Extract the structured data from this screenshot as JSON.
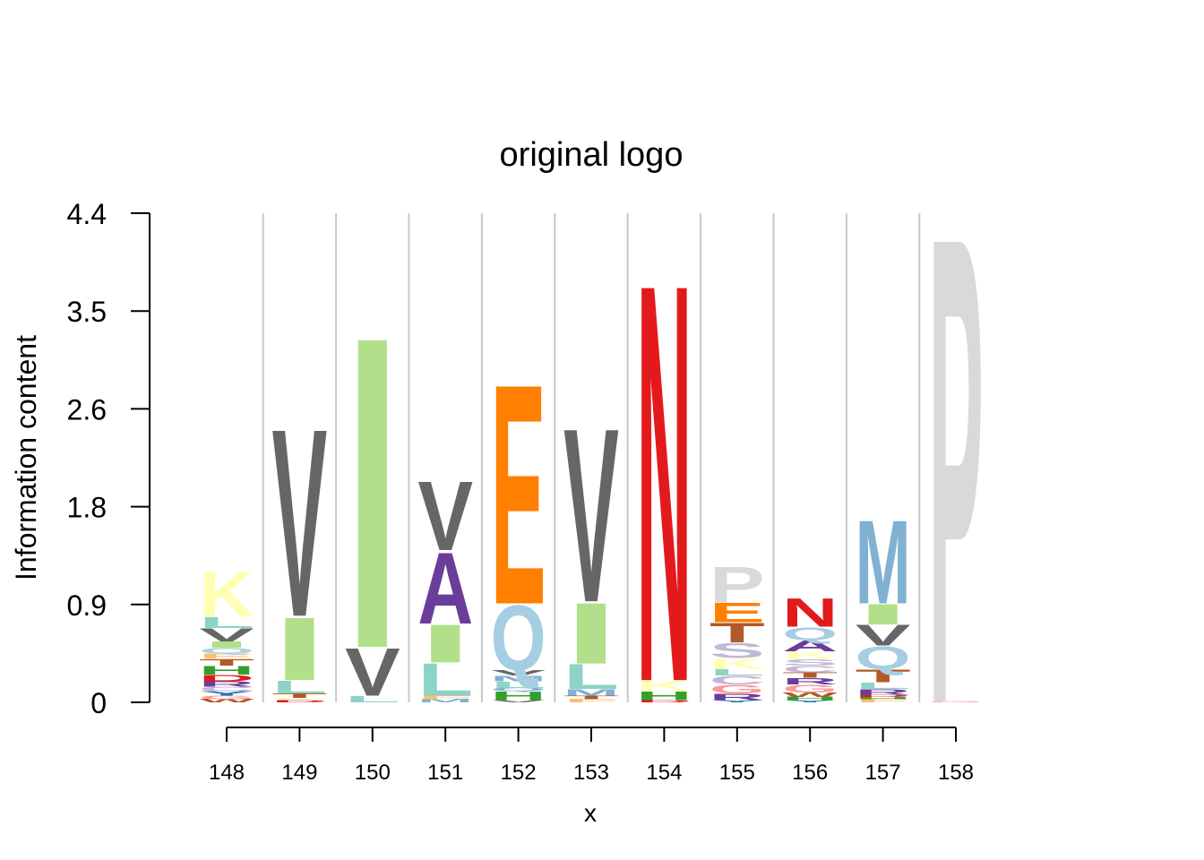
{
  "chart_data": {
    "type": "sequence-logo",
    "title": "original logo",
    "xlabel": "x",
    "ylabel": "Information content",
    "ylim": [
      0,
      4.4
    ],
    "yticks": [
      "0",
      "0.9",
      "1.8",
      "2.6",
      "3.5",
      "4.4"
    ],
    "positions": [
      {
        "x": "148",
        "letters": [
          {
            "l": "W",
            "h": 0.03,
            "c": "#b15928"
          },
          {
            "l": "G",
            "h": 0.03,
            "c": "#fb9a99"
          },
          {
            "l": "Y",
            "h": 0.04,
            "c": "#1f78b4"
          },
          {
            "l": "C",
            "h": 0.04,
            "c": "#cab2d6"
          },
          {
            "l": "R",
            "h": 0.05,
            "c": "#6a3d9a"
          },
          {
            "l": "D",
            "h": 0.06,
            "c": "#e31a1c"
          },
          {
            "l": "H",
            "h": 0.08,
            "c": "#33a02c"
          },
          {
            "l": "T",
            "h": 0.06,
            "c": "#b15928"
          },
          {
            "l": "E",
            "h": 0.05,
            "c": "#fdbf6f"
          },
          {
            "l": "Q",
            "h": 0.05,
            "c": "#a6cee3"
          },
          {
            "l": "I",
            "h": 0.06,
            "c": "#b2df8a"
          },
          {
            "l": "V",
            "h": 0.12,
            "c": "#666666"
          },
          {
            "l": "L",
            "h": 0.1,
            "c": "#8dd3c7"
          },
          {
            "l": "K",
            "h": 0.42,
            "c": "#ffffb3"
          }
        ]
      },
      {
        "x": "149",
        "letters": [
          {
            "l": "D",
            "h": 0.02,
            "c": "#e31a1c"
          },
          {
            "l": "F",
            "h": 0.02,
            "c": "#ffffb3"
          },
          {
            "l": "T",
            "h": 0.04,
            "c": "#b15928"
          },
          {
            "l": "L",
            "h": 0.12,
            "c": "#8dd3c7"
          },
          {
            "l": "I",
            "h": 0.58,
            "c": "#b2df8a"
          },
          {
            "l": "V",
            "h": 1.73,
            "c": "#666666"
          }
        ]
      },
      {
        "x": "150",
        "letters": [
          {
            "l": "L",
            "h": 0.06,
            "c": "#8dd3c7"
          },
          {
            "l": "V",
            "h": 0.44,
            "c": "#666666"
          },
          {
            "l": "I",
            "h": 2.87,
            "c": "#b2df8a"
          }
        ]
      },
      {
        "x": "151",
        "letters": [
          {
            "l": "M",
            "h": 0.03,
            "c": "#80b1d3"
          },
          {
            "l": "F",
            "h": 0.03,
            "c": "#fdbf6f"
          },
          {
            "l": "L",
            "h": 0.3,
            "c": "#8dd3c7"
          },
          {
            "l": "I",
            "h": 0.35,
            "c": "#b2df8a"
          },
          {
            "l": "A",
            "h": 0.66,
            "c": "#6a3d9a"
          },
          {
            "l": "V",
            "h": 0.64,
            "c": "#666666"
          }
        ]
      },
      {
        "x": "152",
        "letters": [
          {
            "l": "V",
            "h": 0.02,
            "c": "#666666"
          },
          {
            "l": "H",
            "h": 0.08,
            "c": "#33a02c"
          },
          {
            "l": "Q",
            "h": 0.03,
            "c": "#80b1d3"
          },
          {
            "l": "L",
            "h": 0.06,
            "c": "#8dd3c7"
          },
          {
            "l": "M",
            "h": 0.05,
            "c": "#80b1d3"
          },
          {
            "l": "V",
            "h": 0.05,
            "c": "#666666"
          },
          {
            "l": "Q",
            "h": 0.6,
            "c": "#a6cee3"
          },
          {
            "l": "E",
            "h": 2.03,
            "c": "#ff7f00"
          }
        ]
      },
      {
        "x": "153",
        "letters": [
          {
            "l": "F",
            "h": 0.03,
            "c": "#fdbf6f"
          },
          {
            "l": "T",
            "h": 0.03,
            "c": "#b15928"
          },
          {
            "l": "M",
            "h": 0.06,
            "c": "#80b1d3"
          },
          {
            "l": "L",
            "h": 0.23,
            "c": "#8dd3c7"
          },
          {
            "l": "I",
            "h": 0.56,
            "c": "#b2df8a"
          },
          {
            "l": "V",
            "h": 1.6,
            "c": "#666666"
          }
        ]
      },
      {
        "x": "154",
        "letters": [
          {
            "l": "D",
            "h": 0.02,
            "c": "#e31a1c"
          },
          {
            "l": "H",
            "h": 0.08,
            "c": "#33a02c"
          },
          {
            "l": "K",
            "h": 0.1,
            "c": "#ffffb3"
          },
          {
            "l": "N",
            "h": 3.67,
            "c": "#e31a1c"
          }
        ]
      },
      {
        "x": "155",
        "letters": [
          {
            "l": "Y",
            "h": 0.02,
            "c": "#1f78b4"
          },
          {
            "l": "R",
            "h": 0.06,
            "c": "#6a3d9a"
          },
          {
            "l": "G",
            "h": 0.08,
            "c": "#fb9a99"
          },
          {
            "l": "C",
            "h": 0.08,
            "c": "#cab2d6"
          },
          {
            "l": "L",
            "h": 0.06,
            "c": "#8dd3c7"
          },
          {
            "l": "K",
            "h": 0.1,
            "c": "#ffffb3"
          },
          {
            "l": "S",
            "h": 0.14,
            "c": "#bebada"
          },
          {
            "l": "T",
            "h": 0.18,
            "c": "#b15928"
          },
          {
            "l": "E",
            "h": 0.18,
            "c": "#ff7f00"
          },
          {
            "l": "P",
            "h": 0.33,
            "c": "#d9d9d9"
          }
        ]
      },
      {
        "x": "156",
        "letters": [
          {
            "l": "Y",
            "h": 0.02,
            "c": "#1f78b4"
          },
          {
            "l": "H",
            "h": 0.03,
            "c": "#33a02c"
          },
          {
            "l": "W",
            "h": 0.04,
            "c": "#b15928"
          },
          {
            "l": "G",
            "h": 0.07,
            "c": "#fb9a99"
          },
          {
            "l": "R",
            "h": 0.06,
            "c": "#6a3d9a"
          },
          {
            "l": "T",
            "h": 0.05,
            "c": "#b15928"
          },
          {
            "l": "C",
            "h": 0.06,
            "c": "#cab2d6"
          },
          {
            "l": "S",
            "h": 0.06,
            "c": "#bebada"
          },
          {
            "l": "K",
            "h": 0.07,
            "c": "#ffffb3"
          },
          {
            "l": "A",
            "h": 0.1,
            "c": "#6a3d9a"
          },
          {
            "l": "Q",
            "h": 0.12,
            "c": "#a6cee3"
          },
          {
            "l": "N",
            "h": 0.26,
            "c": "#e31a1c"
          }
        ]
      },
      {
        "x": "157",
        "letters": [
          {
            "l": "F",
            "h": 0.03,
            "c": "#fdbf6f"
          },
          {
            "l": "H",
            "h": 0.02,
            "c": "#33a02c"
          },
          {
            "l": "D",
            "h": 0.02,
            "c": "#e31a1c"
          },
          {
            "l": "R",
            "h": 0.05,
            "c": "#6a3d9a"
          },
          {
            "l": "L",
            "h": 0.06,
            "c": "#8dd3c7"
          },
          {
            "l": "T",
            "h": 0.12,
            "c": "#b15928"
          },
          {
            "l": "Q",
            "h": 0.21,
            "c": "#a6cee3"
          },
          {
            "l": "V",
            "h": 0.19,
            "c": "#666666"
          },
          {
            "l": "I",
            "h": 0.19,
            "c": "#b2df8a"
          },
          {
            "l": "M",
            "h": 0.77,
            "c": "#80b1d3"
          }
        ]
      },
      {
        "x": "158",
        "letters": [
          {
            "l": "G",
            "h": 0.01,
            "c": "#fb9a99"
          },
          {
            "l": "P",
            "h": 4.3,
            "c": "#d9d9d9"
          }
        ]
      }
    ]
  }
}
